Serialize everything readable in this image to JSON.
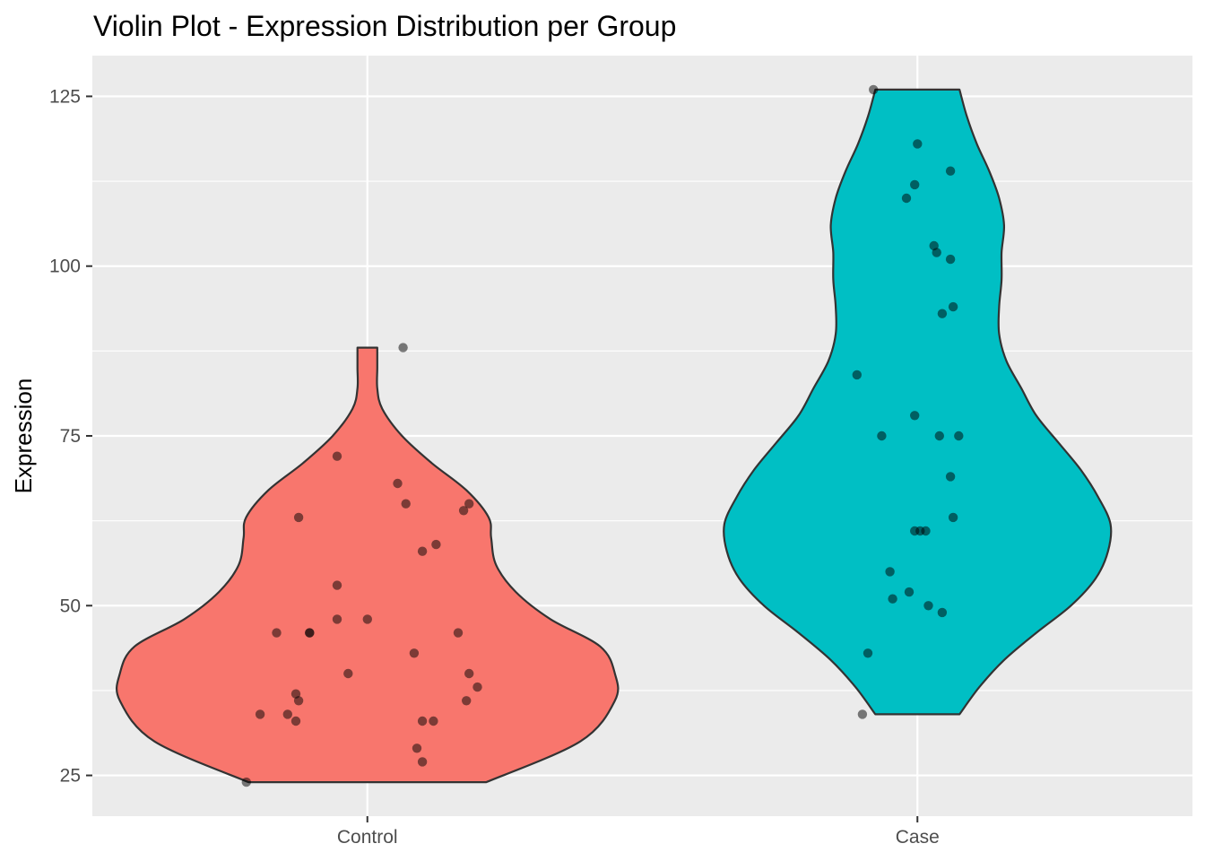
{
  "chart_data": {
    "type": "violin",
    "title": "Violin Plot - Expression Distribution per Group",
    "xlabel": "",
    "ylabel": "Expression",
    "ylim": [
      19,
      131
    ],
    "yticks": [
      25,
      50,
      75,
      100,
      125
    ],
    "grid": true,
    "legend": "none",
    "categories": [
      "Control",
      "Case"
    ],
    "series": [
      {
        "category": "Control",
        "color": "#F8766D",
        "min": 24,
        "max": 88,
        "density": [
          [
            24,
            0.48
          ],
          [
            30,
            0.86
          ],
          [
            36,
            1.0
          ],
          [
            40,
            1.0
          ],
          [
            44,
            0.94
          ],
          [
            48,
            0.74
          ],
          [
            52,
            0.6
          ],
          [
            56,
            0.52
          ],
          [
            60,
            0.5
          ],
          [
            63,
            0.49
          ],
          [
            67,
            0.4
          ],
          [
            71,
            0.26
          ],
          [
            75,
            0.14
          ],
          [
            79,
            0.06
          ],
          [
            82,
            0.04
          ],
          [
            85,
            0.04
          ],
          [
            88,
            0.04
          ]
        ],
        "points": [
          {
            "jitter": -0.44,
            "y": 24
          },
          {
            "jitter": 0.2,
            "y": 27
          },
          {
            "jitter": -0.39,
            "y": 34
          },
          {
            "jitter": 0.2,
            "y": 33
          },
          {
            "jitter": -0.26,
            "y": 33
          },
          {
            "jitter": -0.29,
            "y": 34
          },
          {
            "jitter": 0.24,
            "y": 33
          },
          {
            "jitter": 0.18,
            "y": 29
          },
          {
            "jitter": -0.25,
            "y": 36
          },
          {
            "jitter": -0.26,
            "y": 37
          },
          {
            "jitter": -0.33,
            "y": 46
          },
          {
            "jitter": -0.21,
            "y": 46
          },
          {
            "jitter": -0.21,
            "y": 46
          },
          {
            "jitter": -0.07,
            "y": 40
          },
          {
            "jitter": -0.11,
            "y": 48
          },
          {
            "jitter": 0.0,
            "y": 48
          },
          {
            "jitter": -0.11,
            "y": 53
          },
          {
            "jitter": 0.17,
            "y": 43
          },
          {
            "jitter": 0.33,
            "y": 46
          },
          {
            "jitter": 0.37,
            "y": 40
          },
          {
            "jitter": 0.4,
            "y": 38
          },
          {
            "jitter": 0.36,
            "y": 36
          },
          {
            "jitter": 0.2,
            "y": 58
          },
          {
            "jitter": 0.25,
            "y": 59
          },
          {
            "jitter": -0.25,
            "y": 63
          },
          {
            "jitter": 0.14,
            "y": 65
          },
          {
            "jitter": 0.11,
            "y": 68
          },
          {
            "jitter": -0.11,
            "y": 72
          },
          {
            "jitter": 0.35,
            "y": 64
          },
          {
            "jitter": 0.37,
            "y": 65
          },
          {
            "jitter": 0.13,
            "y": 88
          }
        ]
      },
      {
        "category": "Case",
        "color": "#00BFC4",
        "min": 34,
        "max": 126,
        "density": [
          [
            34,
            0.17
          ],
          [
            38,
            0.25
          ],
          [
            42,
            0.35
          ],
          [
            46,
            0.48
          ],
          [
            50,
            0.62
          ],
          [
            54,
            0.72
          ],
          [
            58,
            0.77
          ],
          [
            62,
            0.78
          ],
          [
            66,
            0.73
          ],
          [
            70,
            0.66
          ],
          [
            74,
            0.57
          ],
          [
            78,
            0.48
          ],
          [
            82,
            0.42
          ],
          [
            86,
            0.36
          ],
          [
            90,
            0.33
          ],
          [
            94,
            0.33
          ],
          [
            98,
            0.34
          ],
          [
            102,
            0.34
          ],
          [
            106,
            0.35
          ],
          [
            110,
            0.33
          ],
          [
            114,
            0.29
          ],
          [
            118,
            0.24
          ],
          [
            122,
            0.2
          ],
          [
            126,
            0.17
          ]
        ],
        "points": [
          {
            "jitter": -0.2,
            "y": 34
          },
          {
            "jitter": -0.18,
            "y": 43
          },
          {
            "jitter": -0.1,
            "y": 55
          },
          {
            "jitter": -0.09,
            "y": 51
          },
          {
            "jitter": -0.03,
            "y": 52
          },
          {
            "jitter": 0.04,
            "y": 50
          },
          {
            "jitter": 0.09,
            "y": 49
          },
          {
            "jitter": -0.01,
            "y": 61
          },
          {
            "jitter": 0.01,
            "y": 61
          },
          {
            "jitter": 0.03,
            "y": 61
          },
          {
            "jitter": 0.13,
            "y": 63
          },
          {
            "jitter": 0.12,
            "y": 69
          },
          {
            "jitter": -0.22,
            "y": 84
          },
          {
            "jitter": -0.13,
            "y": 75
          },
          {
            "jitter": -0.01,
            "y": 78
          },
          {
            "jitter": 0.08,
            "y": 75
          },
          {
            "jitter": 0.15,
            "y": 75
          },
          {
            "jitter": 0.09,
            "y": 93
          },
          {
            "jitter": 0.13,
            "y": 94
          },
          {
            "jitter": 0.12,
            "y": 101
          },
          {
            "jitter": 0.07,
            "y": 102
          },
          {
            "jitter": 0.06,
            "y": 103
          },
          {
            "jitter": -0.04,
            "y": 110
          },
          {
            "jitter": -0.01,
            "y": 112
          },
          {
            "jitter": 0.0,
            "y": 118
          },
          {
            "jitter": 0.12,
            "y": 114
          },
          {
            "jitter": -0.16,
            "y": 126
          }
        ]
      }
    ]
  }
}
